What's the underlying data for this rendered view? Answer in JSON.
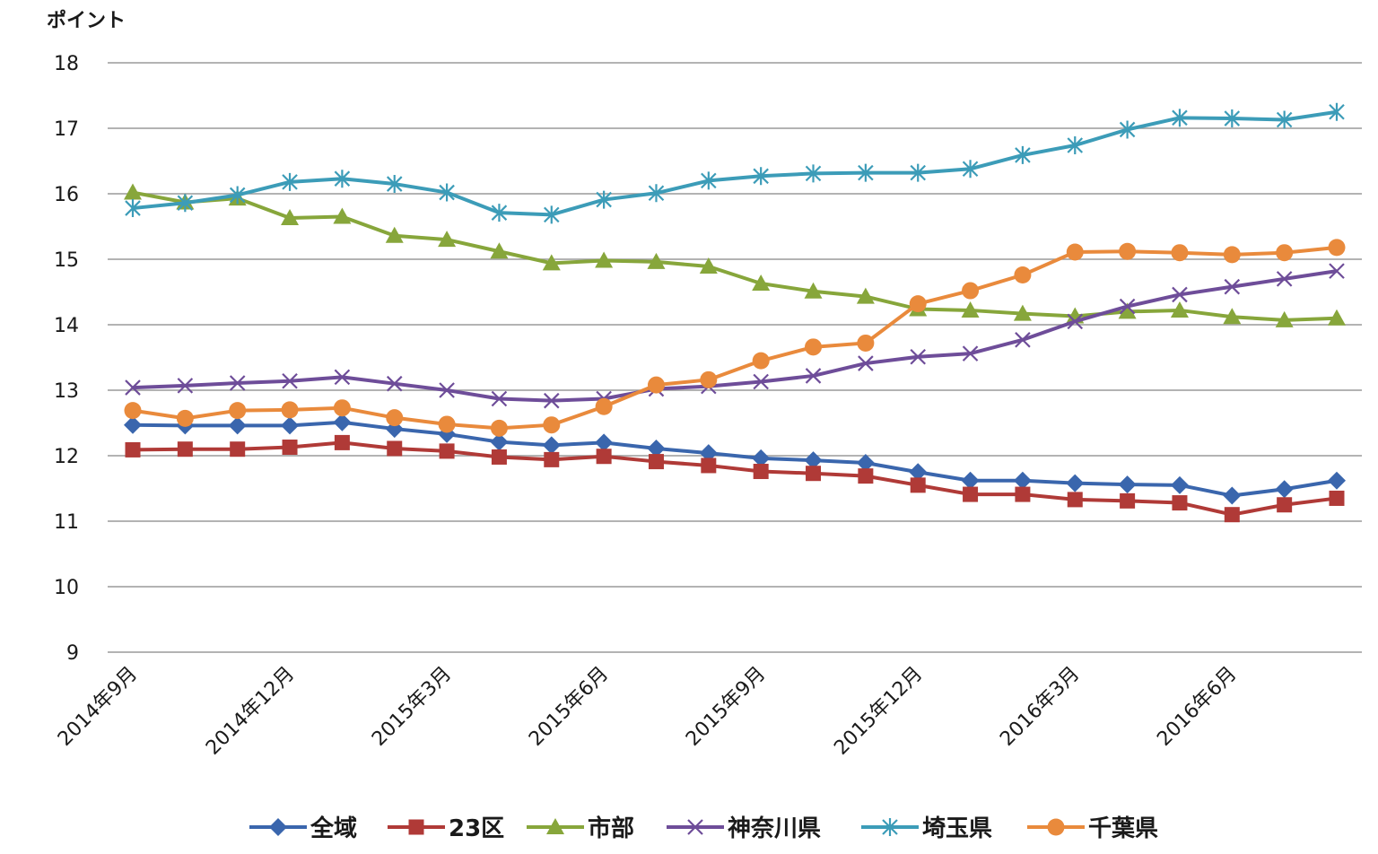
{
  "chart_data": {
    "type": "line",
    "title": "",
    "ylabel": "ポイント",
    "xlabel": "",
    "ylim": [
      9,
      18
    ],
    "yticks": [
      9,
      10,
      11,
      12,
      13,
      14,
      15,
      16,
      17,
      18
    ],
    "grid": true,
    "legend_position": "bottom",
    "x": [
      "2014年9月",
      "2014年10月",
      "2014年11月",
      "2014年12月",
      "2015年1月",
      "2015年2月",
      "2015年3月",
      "2015年4月",
      "2015年5月",
      "2015年6月",
      "2015年7月",
      "2015年8月",
      "2015年9月",
      "2015年10月",
      "2015年11月",
      "2015年12月",
      "2016年1月",
      "2016年2月",
      "2016年3月",
      "2016年4月",
      "2016年5月",
      "2016年6月",
      "2016年7月",
      "2016年8月"
    ],
    "x_tick_labels": [
      {
        "index": 0,
        "label": "2014年9月"
      },
      {
        "index": 3,
        "label": "2014年12月"
      },
      {
        "index": 6,
        "label": "2015年3月"
      },
      {
        "index": 9,
        "label": "2015年6月"
      },
      {
        "index": 12,
        "label": "2015年9月"
      },
      {
        "index": 15,
        "label": "2015年12月"
      },
      {
        "index": 18,
        "label": "2016年3月"
      },
      {
        "index": 21,
        "label": "2016年6月"
      }
    ],
    "series": [
      {
        "name": "全域",
        "color": "#3a66ad",
        "marker": "diamond",
        "values": [
          12.47,
          12.46,
          12.46,
          12.46,
          12.51,
          12.41,
          12.33,
          12.21,
          12.16,
          12.2,
          12.11,
          12.04,
          11.96,
          11.93,
          11.89,
          11.75,
          11.62,
          11.62,
          11.58,
          11.56,
          11.55,
          11.39,
          11.49,
          11.62
        ]
      },
      {
        "name": "23区",
        "color": "#b03a37",
        "marker": "square",
        "values": [
          12.09,
          12.1,
          12.1,
          12.13,
          12.2,
          12.11,
          12.07,
          11.98,
          11.94,
          11.99,
          11.91,
          11.85,
          11.76,
          11.73,
          11.69,
          11.55,
          11.41,
          11.41,
          11.33,
          11.31,
          11.28,
          11.1,
          11.25,
          11.35
        ]
      },
      {
        "name": "市部",
        "color": "#87a63b",
        "marker": "triangle",
        "values": [
          16.02,
          15.87,
          15.93,
          15.63,
          15.65,
          15.36,
          15.3,
          15.12,
          14.94,
          14.98,
          14.96,
          14.89,
          14.63,
          14.51,
          14.43,
          14.24,
          14.22,
          14.17,
          14.13,
          14.2,
          14.22,
          14.12,
          14.07,
          14.1
        ]
      },
      {
        "name": "神奈川県",
        "color": "#6e4d99",
        "marker": "x",
        "values": [
          13.04,
          13.07,
          13.11,
          13.14,
          13.2,
          13.1,
          13.0,
          12.87,
          12.84,
          12.87,
          13.02,
          13.06,
          13.13,
          13.22,
          13.41,
          13.51,
          13.56,
          13.77,
          14.05,
          14.28,
          14.46,
          14.58,
          14.7,
          14.82
        ]
      },
      {
        "name": "埼玉県",
        "color": "#3c9cb8",
        "marker": "asterisk",
        "values": [
          15.78,
          15.86,
          15.98,
          16.18,
          16.23,
          16.15,
          16.02,
          15.71,
          15.68,
          15.91,
          16.01,
          16.2,
          16.27,
          16.31,
          16.32,
          16.32,
          16.38,
          16.59,
          16.74,
          16.98,
          17.16,
          17.15,
          17.13,
          17.25
        ]
      },
      {
        "name": "千葉県",
        "color": "#e98a3c",
        "marker": "circle",
        "values": [
          12.69,
          12.57,
          12.69,
          12.7,
          12.73,
          12.58,
          12.48,
          12.42,
          12.47,
          12.75,
          13.08,
          13.16,
          13.45,
          13.66,
          13.72,
          14.32,
          14.52,
          14.76,
          15.11,
          15.12,
          15.1,
          15.07,
          15.1,
          15.18
        ]
      }
    ]
  }
}
